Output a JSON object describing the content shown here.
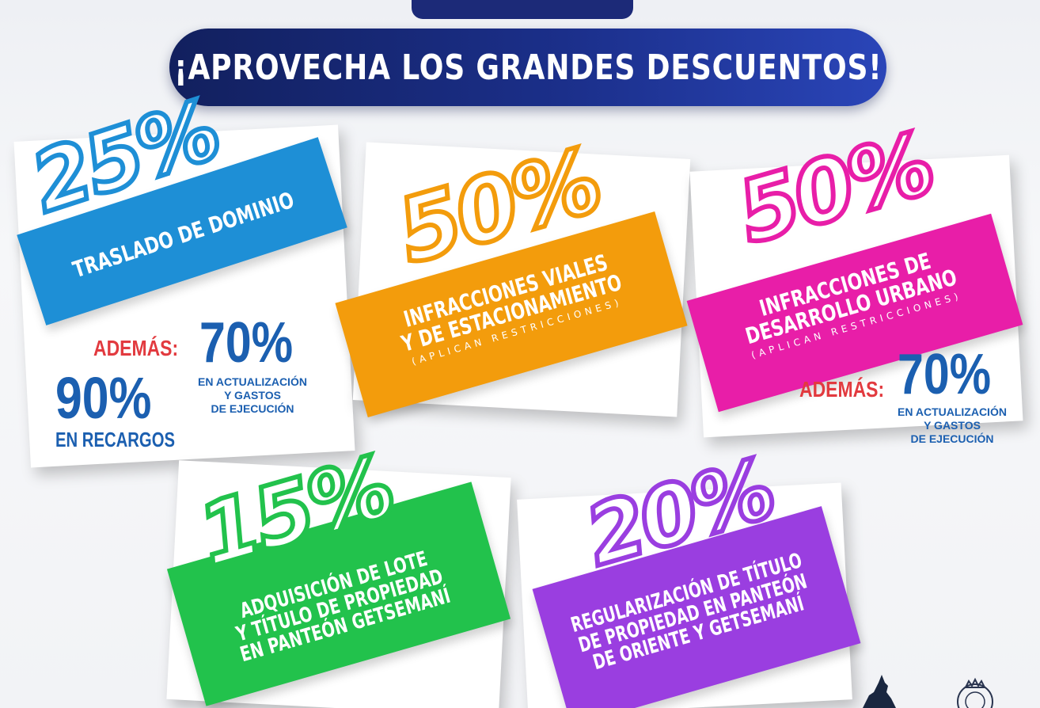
{
  "headline": "¡APROVECHA LOS GRANDES DESCUENTOS!",
  "cards": [
    {
      "percent": "25%",
      "label_lines": [
        "TRASLADO DE DOMINIO"
      ],
      "color": "#1e8fd6",
      "extras": {
        "ademas_label": "ADEMÁS:",
        "pct_a": "70%",
        "pct_a_text": [
          "EN ACTUALIZACIÓN",
          "Y GASTOS",
          "DE EJECUCIÓN"
        ],
        "pct_b": "90%",
        "pct_b_text": "EN RECARGOS"
      }
    },
    {
      "percent": "50%",
      "label_lines": [
        "INFRACCIONES VIALES",
        "Y DE ESTACIONAMIENTO"
      ],
      "restriction": "(APLICAN RESTRICCIONES)",
      "color": "#f39c0c"
    },
    {
      "percent": "50%",
      "label_lines": [
        "INFRACCIONES DE",
        "DESARROLLO URBANO"
      ],
      "restriction": "(APLICAN RESTRICCIONES)",
      "color": "#e81ea8",
      "extras": {
        "ademas_label": "ADEMÁS:",
        "pct_a": "70%",
        "pct_a_text": [
          "EN ACTUALIZACIÓN",
          "Y GASTOS",
          "DE EJECUCIÓN"
        ]
      }
    },
    {
      "percent": "15%",
      "label_lines": [
        "ADQUISICIÓN DE LOTE",
        "Y TÍTULO DE PROPIEDAD",
        "EN PANTEÓN GETSEMANÍ"
      ],
      "color": "#22c24c"
    },
    {
      "percent": "20%",
      "label_lines": [
        "REGULARIZACIÓN DE TÍTULO",
        "DE PROPIEDAD EN PANTEÓN",
        "DE ORIENTE Y GETSEMANÍ"
      ],
      "color": "#9a3ee0"
    }
  ]
}
